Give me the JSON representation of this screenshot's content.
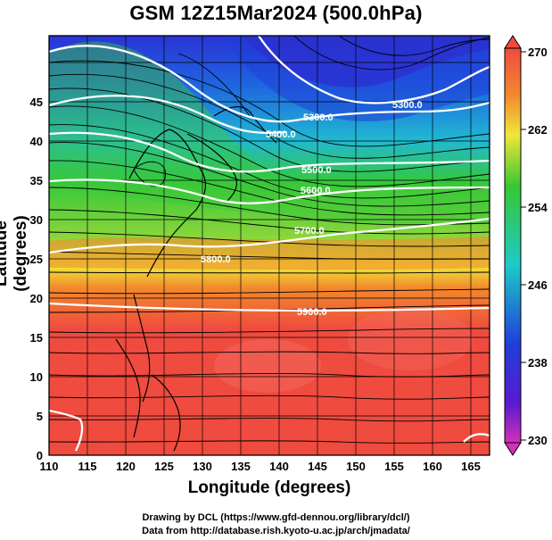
{
  "title": "GSM 12Z15Mar2024 (500.0hPa)",
  "xlabel": "Longitude (degrees)",
  "ylabel": "Latitude  (degrees)",
  "credit_line1": "Drawing by DCL (https://www.gfd-dennou.org/library/dcl/)",
  "credit_line2": "Data from http://database.rish.kyoto-u.ac.jp/arch/jmadata/",
  "x_ticks": [
    "110",
    "115",
    "120",
    "125",
    "130",
    "135",
    "140",
    "145",
    "150",
    "155",
    "160",
    "165"
  ],
  "y_ticks": [
    "0",
    "5",
    "10",
    "15",
    "20",
    "25",
    "30",
    "35",
    "40",
    "45"
  ],
  "colorbar_labels": [
    "270",
    "262",
    "254",
    "246",
    "238",
    "230"
  ],
  "contours": [
    {
      "label": "5300.0"
    },
    {
      "label": "5400.0"
    },
    {
      "label": "5500.0"
    },
    {
      "label": "5600.0"
    },
    {
      "label": "5700.0"
    },
    {
      "label": "5800.0"
    },
    {
      "label": "5900.0"
    }
  ],
  "colors": {
    "warm": "#ef4b3f",
    "orange": "#f28a2c",
    "yellow": "#d6e632",
    "green": "#37c832",
    "cyan": "#1ec9c8",
    "blue": "#1f3fd8",
    "violet": "#5a1ad0"
  }
}
